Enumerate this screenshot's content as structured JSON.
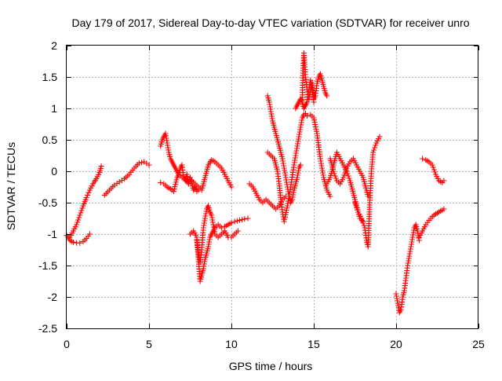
{
  "chart_data": {
    "type": "scatter",
    "title": "Day 179 of 2017, Sidereal Day-to-day VTEC variation (SDTVAR) for receiver unro",
    "xlabel": "GPS time / hours",
    "ylabel": "SDTVAR / TECUs",
    "xlim": [
      0,
      25
    ],
    "ylim": [
      -2.5,
      2
    ],
    "xticks": [
      0,
      5,
      10,
      15,
      20,
      25
    ],
    "xtick_labels": [
      "0",
      "5",
      "10",
      "15",
      "20",
      "25"
    ],
    "yticks": [
      -2.5,
      -2,
      -1.5,
      -1,
      -0.5,
      0,
      0.5,
      1,
      1.5,
      2
    ],
    "ytick_labels": [
      "-2.5",
      "-2",
      "-1.5",
      "-1",
      "-0.5",
      "0",
      "0.5",
      "1",
      "1.5",
      "2"
    ],
    "grid": true,
    "marker": "+",
    "marker_color": "#ff0000",
    "series": [
      {
        "name": "seg01",
        "x": [
          0.0,
          0.2,
          0.4,
          0.6,
          0.8,
          1.0,
          1.2,
          1.4
        ],
        "y": [
          -1.02,
          -1.1,
          -1.13,
          -1.14,
          -1.14,
          -1.12,
          -1.07,
          -1.0
        ]
      },
      {
        "name": "seg02",
        "x": [
          0.2,
          0.4,
          0.6,
          0.8,
          1.0,
          1.2,
          1.4,
          1.6,
          1.8,
          2.0,
          2.1
        ],
        "y": [
          -1.05,
          -0.95,
          -0.85,
          -0.7,
          -0.55,
          -0.42,
          -0.3,
          -0.2,
          -0.12,
          -0.02,
          0.08
        ]
      },
      {
        "name": "seg03",
        "x": [
          2.3,
          2.6,
          2.9,
          3.2,
          3.5,
          3.8,
          4.1,
          4.4,
          4.7,
          5.0
        ],
        "y": [
          -0.38,
          -0.3,
          -0.22,
          -0.17,
          -0.12,
          -0.05,
          0.05,
          0.13,
          0.15,
          0.1
        ]
      },
      {
        "name": "seg04",
        "x": [
          5.7,
          5.8,
          5.9,
          6.0,
          6.1,
          6.2,
          6.3,
          6.4,
          6.5,
          6.6,
          6.7,
          6.8,
          6.9,
          7.0,
          7.1,
          7.2,
          7.3,
          7.4,
          7.5,
          7.6,
          7.7,
          7.8,
          7.9,
          8.0
        ],
        "y": [
          0.4,
          0.5,
          0.55,
          0.6,
          0.45,
          0.3,
          0.2,
          0.15,
          0.1,
          0.05,
          0.0,
          -0.05,
          0.05,
          0.1,
          -0.1,
          -0.15,
          -0.05,
          -0.2,
          -0.1,
          -0.2,
          -0.3,
          -0.25,
          -0.32,
          -0.3
        ]
      },
      {
        "name": "seg05",
        "x": [
          5.7,
          5.9,
          6.1,
          6.3,
          6.5,
          6.7,
          6.8,
          7.0,
          7.2,
          7.4,
          7.6,
          7.8,
          8.0,
          8.2,
          8.4,
          8.6,
          8.8,
          9.0,
          9.2,
          9.4,
          9.6,
          9.8,
          10.0
        ],
        "y": [
          -0.18,
          -0.2,
          -0.25,
          -0.28,
          -0.32,
          -0.1,
          -0.05,
          -0.1,
          -0.12,
          -0.2,
          -0.15,
          -0.2,
          -0.25,
          -0.3,
          -0.1,
          0.1,
          0.18,
          0.15,
          0.1,
          0.05,
          -0.05,
          -0.15,
          -0.25
        ]
      },
      {
        "name": "seg06",
        "x": [
          7.5,
          7.7,
          7.9,
          8.0,
          8.1,
          8.2,
          8.3,
          8.4,
          8.5,
          8.6,
          8.7,
          8.8,
          8.9,
          9.0,
          9.2,
          9.4,
          9.6,
          9.8,
          10.0,
          10.2,
          10.5,
          10.8,
          11.0
        ],
        "y": [
          -1.0,
          -0.95,
          -1.05,
          -1.4,
          -1.75,
          -1.65,
          -1.55,
          -1.4,
          -1.3,
          -1.2,
          -1.05,
          -1.0,
          -0.95,
          -0.9,
          -0.85,
          -0.9,
          -0.88,
          -0.85,
          -0.82,
          -0.8,
          -0.78,
          -0.76,
          -0.75
        ]
      },
      {
        "name": "seg07",
        "x": [
          7.9,
          8.0,
          8.1,
          8.2,
          8.3,
          8.4,
          8.5,
          8.6,
          8.7,
          8.8,
          8.9,
          9.0,
          9.2,
          9.4,
          9.6,
          9.8,
          10.0,
          10.2,
          10.4
        ],
        "y": [
          -1.1,
          -1.3,
          -1.45,
          -1.25,
          -0.9,
          -0.75,
          -0.6,
          -0.55,
          -0.65,
          -0.7,
          -0.85,
          -1.0,
          -1.05,
          -1.0,
          -0.95,
          -1.05,
          -1.05,
          -1.0,
          -0.95
        ]
      },
      {
        "name": "seg08",
        "x": [
          11.1,
          11.3,
          11.5,
          11.7,
          11.9,
          12.1,
          12.3,
          12.5,
          12.7,
          12.9,
          13.1,
          13.3
        ],
        "y": [
          -0.2,
          -0.25,
          -0.35,
          -0.45,
          -0.5,
          -0.45,
          -0.5,
          -0.55,
          -0.6,
          -0.55,
          -0.45,
          -0.4
        ]
      },
      {
        "name": "seg09",
        "x": [
          12.2,
          12.3,
          12.4,
          12.5,
          12.6,
          12.7,
          12.8,
          12.9,
          13.0,
          13.1,
          13.2,
          13.3,
          13.4,
          13.5,
          13.6,
          13.7,
          13.8,
          13.9,
          14.0,
          14.1,
          14.2
        ],
        "y": [
          1.2,
          1.1,
          0.95,
          0.8,
          0.7,
          0.6,
          0.5,
          0.4,
          0.3,
          0.2,
          0.05,
          -0.1,
          -0.25,
          -0.4,
          -0.5,
          -0.45,
          -0.3,
          -0.2,
          -0.1,
          0.05,
          0.1
        ]
      },
      {
        "name": "seg10",
        "x": [
          12.2,
          12.4,
          12.6,
          12.8,
          12.9,
          13.0,
          13.1,
          13.2,
          13.4,
          13.6,
          13.8,
          14.0,
          14.2,
          14.3,
          14.4,
          14.5,
          14.6,
          14.8,
          15.0,
          15.2,
          15.4,
          15.6,
          15.8,
          16.0
        ],
        "y": [
          0.3,
          0.25,
          0.2,
          0.0,
          -0.2,
          -0.45,
          -0.65,
          -0.8,
          -0.55,
          -0.25,
          0.1,
          0.4,
          0.7,
          0.85,
          0.9,
          0.92,
          0.88,
          0.9,
          0.85,
          0.6,
          0.2,
          -0.1,
          -0.3,
          -0.4
        ]
      },
      {
        "name": "seg11",
        "x": [
          13.9,
          14.0,
          14.1,
          14.2,
          14.3,
          14.4,
          14.5,
          14.6,
          14.7,
          14.8,
          14.9,
          15.0,
          15.1,
          15.2,
          15.3,
          15.4,
          15.5,
          15.6,
          15.7,
          15.8
        ],
        "y": [
          1.0,
          1.05,
          1.1,
          1.15,
          1.1,
          1.0,
          1.05,
          1.1,
          1.3,
          1.45,
          1.3,
          1.15,
          1.2,
          1.4,
          1.5,
          1.55,
          1.45,
          1.35,
          1.25,
          1.2
        ]
      },
      {
        "name": "seg12",
        "x": [
          14.3,
          14.35,
          14.4,
          14.45,
          14.5,
          14.6,
          14.7,
          14.8,
          14.9,
          15.0
        ],
        "y": [
          1.1,
          1.6,
          1.88,
          1.7,
          1.5,
          1.3,
          1.15,
          1.3,
          1.4,
          1.1
        ]
      },
      {
        "name": "seg13",
        "x": [
          15.8,
          16.0,
          16.2,
          16.4,
          16.6,
          16.8,
          17.0,
          17.2,
          17.4,
          17.6,
          17.8,
          18.0
        ],
        "y": [
          -0.2,
          -0.1,
          0.1,
          0.3,
          0.2,
          0.1,
          0.0,
          -0.15,
          -0.35,
          -0.55,
          -0.75,
          -0.8
        ]
      },
      {
        "name": "seg14",
        "x": [
          16.0,
          16.2,
          16.4,
          16.6,
          16.8,
          17.0,
          17.2,
          17.4,
          17.6,
          17.8,
          18.0,
          18.1,
          18.2,
          18.3
        ],
        "y": [
          0.2,
          0.0,
          -0.15,
          -0.2,
          -0.1,
          0.05,
          0.15,
          0.2,
          0.1,
          0.0,
          -0.1,
          -0.2,
          -0.3,
          -0.4
        ]
      },
      {
        "name": "seg15",
        "x": [
          17.5,
          17.7,
          17.9,
          18.1,
          18.2,
          18.3,
          18.4,
          18.5,
          18.6,
          18.8,
          19.0
        ],
        "y": [
          -0.5,
          -0.65,
          -0.75,
          -0.9,
          -1.1,
          -1.2,
          -0.5,
          0.0,
          0.3,
          0.45,
          0.55
        ]
      },
      {
        "name": "seg16",
        "x": [
          20.0,
          20.1,
          20.2,
          20.3,
          20.4,
          20.5,
          20.6,
          20.7,
          20.8,
          20.9,
          21.0,
          21.1,
          21.2,
          21.3,
          21.4
        ],
        "y": [
          -1.95,
          -2.1,
          -2.25,
          -2.2,
          -2.0,
          -1.9,
          -1.7,
          -1.5,
          -1.35,
          -1.2,
          -1.05,
          -0.9,
          -0.85,
          -0.95,
          -1.1
        ]
      },
      {
        "name": "seg17",
        "x": [
          21.4,
          21.6,
          21.8,
          22.0,
          22.2,
          22.4,
          22.6,
          22.8,
          22.9
        ],
        "y": [
          -1.05,
          -0.95,
          -0.85,
          -0.78,
          -0.72,
          -0.68,
          -0.65,
          -0.62,
          -0.6
        ]
      },
      {
        "name": "seg18",
        "x": [
          21.6,
          21.8,
          22.0,
          22.2,
          22.4,
          22.6,
          22.8,
          22.9
        ],
        "y": [
          0.2,
          0.18,
          0.15,
          0.1,
          -0.05,
          -0.15,
          -0.18,
          -0.15
        ]
      }
    ]
  }
}
